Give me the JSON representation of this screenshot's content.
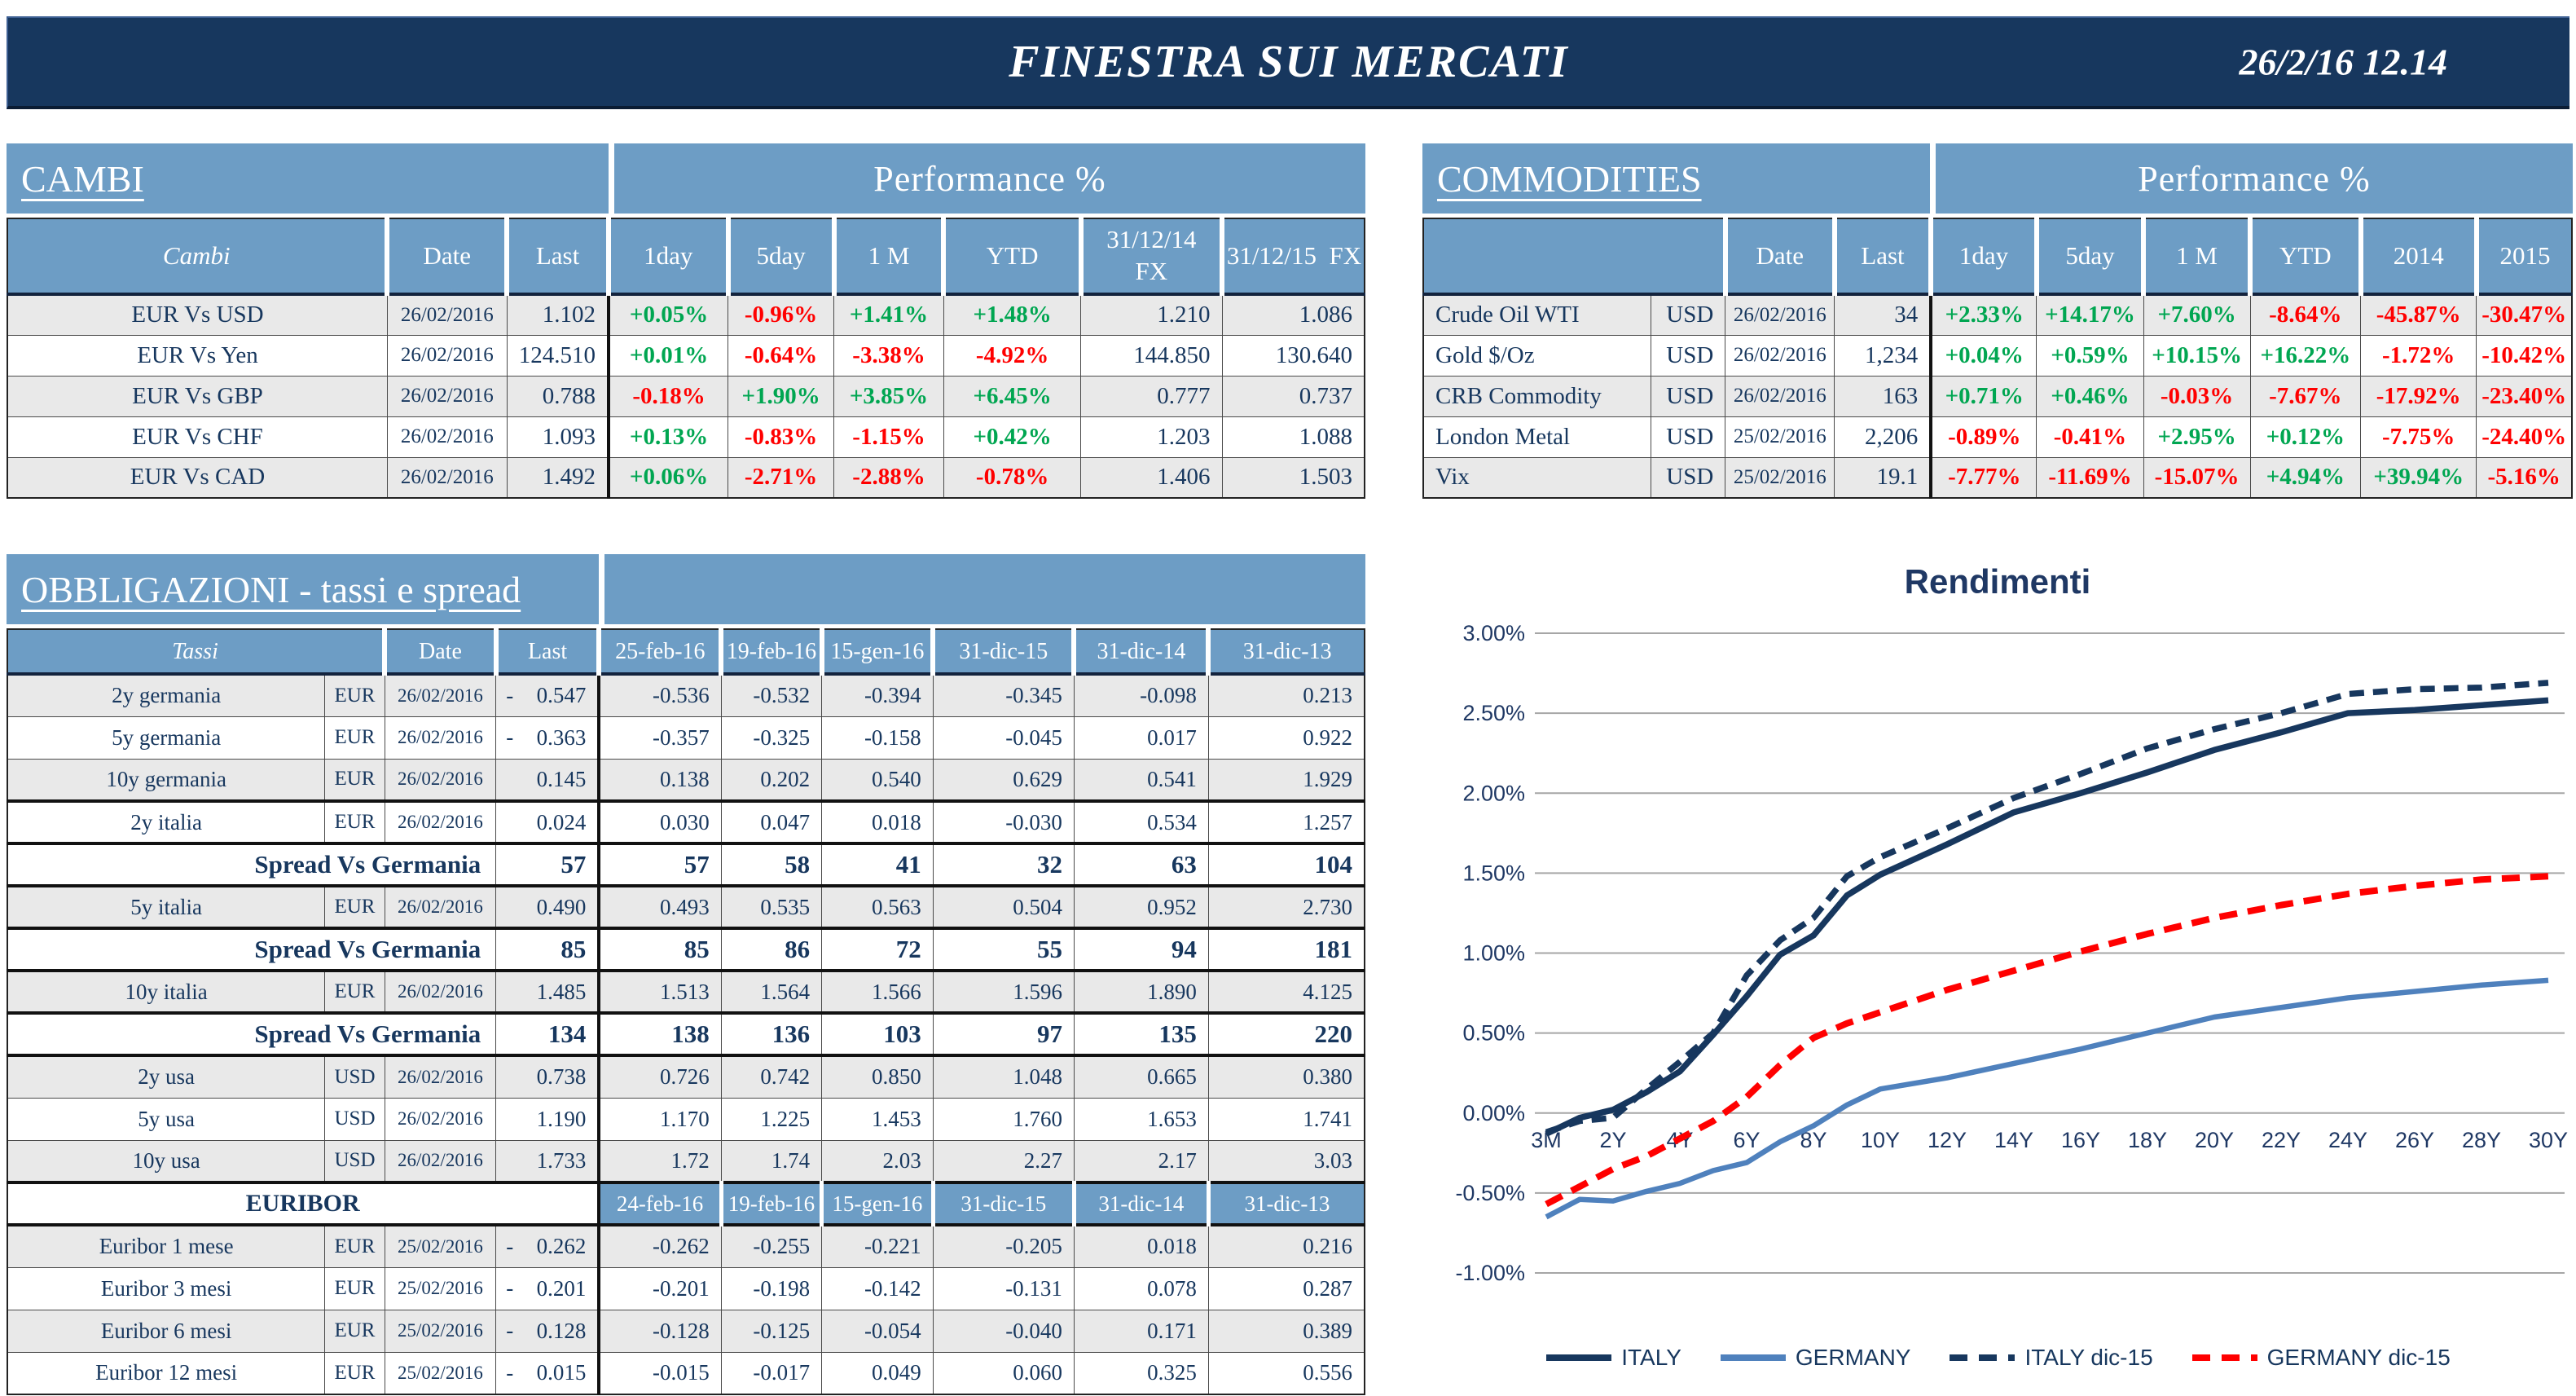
{
  "banner": {
    "title": "FINESTRA SUI MERCATI",
    "datetime": "26/2/16 12.14"
  },
  "colors": {
    "banner_bg": "#17375E",
    "header_blue": "#6D9DC5",
    "navy": "#17375E",
    "green": "#00A651",
    "red": "#FF0000",
    "row_gray": "#E9E9E9",
    "grid_gray": "#A6A6A6",
    "germany_blue": "#4F81BD"
  },
  "cambi": {
    "title": "CAMBI",
    "perf_header": "Performance %",
    "headers": [
      "Cambi",
      "Date",
      "Last",
      "1day",
      "5day",
      "1 M",
      "YTD",
      "31/12/14\nFX",
      "31/12/15  FX"
    ],
    "rows": [
      {
        "name": "EUR Vs USD",
        "date": "26/02/2016",
        "last": "1.102",
        "perf": [
          "+0.05%",
          "-0.96%",
          "+1.41%",
          "+1.48%"
        ],
        "fx14": "1.210",
        "fx15": "1.086"
      },
      {
        "name": "EUR Vs Yen",
        "date": "26/02/2016",
        "last": "124.510",
        "perf": [
          "+0.01%",
          "-0.64%",
          "-3.38%",
          "-4.92%"
        ],
        "fx14": "144.850",
        "fx15": "130.640"
      },
      {
        "name": "EUR Vs GBP",
        "date": "26/02/2016",
        "last": "0.788",
        "perf": [
          "-0.18%",
          "+1.90%",
          "+3.85%",
          "+6.45%"
        ],
        "fx14": "0.777",
        "fx15": "0.737"
      },
      {
        "name": "EUR Vs CHF",
        "date": "26/02/2016",
        "last": "1.093",
        "perf": [
          "+0.13%",
          "-0.83%",
          "-1.15%",
          "+0.42%"
        ],
        "fx14": "1.203",
        "fx15": "1.088"
      },
      {
        "name": "EUR Vs CAD",
        "date": "26/02/2016",
        "last": "1.492",
        "perf": [
          "+0.06%",
          "-2.71%",
          "-2.88%",
          "-0.78%"
        ],
        "fx14": "1.406",
        "fx15": "1.503"
      }
    ]
  },
  "commodities": {
    "title": "COMMODITIES",
    "perf_header": "Performance %",
    "headers": [
      "",
      "Date",
      "Last",
      "1day",
      "5day",
      "1 M",
      "YTD",
      "2014",
      "2015"
    ],
    "rows": [
      {
        "name": "Crude Oil WTI",
        "ccy": "USD",
        "date": "26/02/2016",
        "last": "34",
        "perf": [
          "+2.33%",
          "+14.17%",
          "+7.60%",
          "-8.64%",
          "-45.87%",
          "-30.47%"
        ]
      },
      {
        "name": "Gold $/Oz",
        "ccy": "USD",
        "date": "26/02/2016",
        "last": "1,234",
        "perf": [
          "+0.04%",
          "+0.59%",
          "+10.15%",
          "+16.22%",
          "-1.72%",
          "-10.42%"
        ]
      },
      {
        "name": "CRB Commodity",
        "ccy": "USD",
        "date": "26/02/2016",
        "last": "163",
        "perf": [
          "+0.71%",
          "+0.46%",
          "-0.03%",
          "-7.67%",
          "-17.92%",
          "-23.40%"
        ]
      },
      {
        "name": "London Metal",
        "ccy": "USD",
        "date": "25/02/2016",
        "last": "2,206",
        "perf": [
          "-0.89%",
          "-0.41%",
          "+2.95%",
          "+0.12%",
          "-7.75%",
          "-24.40%"
        ]
      },
      {
        "name": "Vix",
        "ccy": "USD",
        "date": "25/02/2016",
        "last": "19.1",
        "perf": [
          "-7.77%",
          "-11.69%",
          "-15.07%",
          "+4.94%",
          "+39.94%",
          "-5.16%"
        ]
      }
    ]
  },
  "bonds": {
    "title": "OBBLIGAZIONI - tassi e spread",
    "tassi_header": "Tassi",
    "date_header": "Date",
    "last_header": "Last",
    "rate_columns": [
      "25-feb-16",
      "19-feb-16",
      "15-gen-16",
      "31-dic-15",
      "31-dic-14",
      "31-dic-13"
    ],
    "euribor_label": "EURIBOR",
    "euribor_columns": [
      "24-feb-16",
      "19-feb-16",
      "15-gen-16",
      "31-dic-15",
      "31-dic-14",
      "31-dic-13"
    ],
    "spread_label": "Spread Vs Germania",
    "rows": [
      {
        "type": "rate",
        "name": "2y germania",
        "ccy": "EUR",
        "date": "26/02/2016",
        "sign": "-",
        "last": "0.547",
        "vals": [
          "-0.536",
          "-0.532",
          "-0.394",
          "-0.345",
          "-0.098",
          "0.213"
        ],
        "shade": true
      },
      {
        "type": "rate",
        "name": "5y germania",
        "ccy": "EUR",
        "date": "26/02/2016",
        "sign": "-",
        "last": "0.363",
        "vals": [
          "-0.357",
          "-0.325",
          "-0.158",
          "-0.045",
          "0.017",
          "0.922"
        ],
        "shade": false
      },
      {
        "type": "rate",
        "name": "10y germania",
        "ccy": "EUR",
        "date": "26/02/2016",
        "sign": "",
        "last": "0.145",
        "vals": [
          "0.138",
          "0.202",
          "0.540",
          "0.629",
          "0.541",
          "1.929"
        ],
        "shade": true,
        "thick_bottom": true
      },
      {
        "type": "rate",
        "name": "2y italia",
        "ccy": "EUR",
        "date": "26/02/2016",
        "sign": "",
        "last": "0.024",
        "vals": [
          "0.030",
          "0.047",
          "0.018",
          "-0.030",
          "0.534",
          "1.257"
        ],
        "shade": false
      },
      {
        "type": "spread",
        "last": "57",
        "vals": [
          "57",
          "58",
          "41",
          "32",
          "63",
          "104"
        ]
      },
      {
        "type": "rate",
        "name": "5y italia",
        "ccy": "EUR",
        "date": "26/02/2016",
        "sign": "",
        "last": "0.490",
        "vals": [
          "0.493",
          "0.535",
          "0.563",
          "0.504",
          "0.952",
          "2.730"
        ],
        "shade": true
      },
      {
        "type": "spread",
        "last": "85",
        "vals": [
          "85",
          "86",
          "72",
          "55",
          "94",
          "181"
        ]
      },
      {
        "type": "rate",
        "name": "10y italia",
        "ccy": "EUR",
        "date": "26/02/2016",
        "sign": "",
        "last": "1.485",
        "vals": [
          "1.513",
          "1.564",
          "1.566",
          "1.596",
          "1.890",
          "4.125"
        ],
        "shade": true
      },
      {
        "type": "spread",
        "last": "134",
        "vals": [
          "138",
          "136",
          "103",
          "97",
          "135",
          "220"
        ]
      },
      {
        "type": "rate",
        "name": "2y usa",
        "ccy": "USD",
        "date": "26/02/2016",
        "sign": "",
        "last": "0.738",
        "vals": [
          "0.726",
          "0.742",
          "0.850",
          "1.048",
          "0.665",
          "0.380"
        ],
        "shade": true
      },
      {
        "type": "rate",
        "name": "5y usa",
        "ccy": "USD",
        "date": "26/02/2016",
        "sign": "",
        "last": "1.190",
        "vals": [
          "1.170",
          "1.225",
          "1.453",
          "1.760",
          "1.653",
          "1.741"
        ],
        "shade": false
      },
      {
        "type": "rate",
        "name": "10y usa",
        "ccy": "USD",
        "date": "26/02/2016",
        "sign": "",
        "last": "1.733",
        "vals": [
          "1.72",
          "1.74",
          "2.03",
          "2.27",
          "2.17",
          "3.03"
        ],
        "shade": true,
        "thick_bottom": true
      },
      {
        "type": "euribor-header"
      },
      {
        "type": "rate",
        "name": "Euribor 1 mese",
        "ccy": "EUR",
        "date": "25/02/2016",
        "sign": "-",
        "last": "0.262",
        "vals": [
          "-0.262",
          "-0.255",
          "-0.221",
          "-0.205",
          "0.018",
          "0.216"
        ],
        "shade": true
      },
      {
        "type": "rate",
        "name": "Euribor 3 mesi",
        "ccy": "EUR",
        "date": "25/02/2016",
        "sign": "-",
        "last": "0.201",
        "vals": [
          "-0.201",
          "-0.198",
          "-0.142",
          "-0.131",
          "0.078",
          "0.287"
        ],
        "shade": false
      },
      {
        "type": "rate",
        "name": "Euribor 6 mesi",
        "ccy": "EUR",
        "date": "25/02/2016",
        "sign": "-",
        "last": "0.128",
        "vals": [
          "-0.128",
          "-0.125",
          "-0.054",
          "-0.040",
          "0.171",
          "0.389"
        ],
        "shade": true
      },
      {
        "type": "rate",
        "name": "Euribor 12 mesi",
        "ccy": "EUR",
        "date": "25/02/2016",
        "sign": "-",
        "last": "0.015",
        "vals": [
          "-0.015",
          "-0.017",
          "0.049",
          "0.060",
          "0.325",
          "0.556"
        ],
        "shade": false
      }
    ]
  },
  "chart_data": {
    "type": "line",
    "title": "Rendimenti",
    "x_indices": [
      0,
      1,
      2,
      3,
      4,
      5,
      6,
      7,
      8,
      9,
      10,
      12,
      14,
      16,
      18,
      20,
      22,
      24,
      26,
      28,
      30
    ],
    "x_tick_labels": [
      "3M",
      "2Y",
      "4Y",
      "6Y",
      "8Y",
      "10Y",
      "12Y",
      "14Y",
      "16Y",
      "18Y",
      "20Y",
      "22Y",
      "24Y",
      "26Y",
      "28Y",
      "30Y"
    ],
    "x_max_index": 30,
    "ylim": [
      -1.0,
      3.0
    ],
    "ytick_step": 0.5,
    "grid": true,
    "legend_position": "bottom",
    "series": [
      {
        "name": "ITALY",
        "dash": "solid",
        "color": "#17375E",
        "width": 7.5,
        "values": [
          -0.13,
          -0.03,
          0.02,
          0.13,
          0.26,
          0.49,
          0.73,
          0.99,
          1.11,
          1.36,
          1.49,
          1.68,
          1.88,
          2.0,
          2.13,
          2.27,
          2.38,
          2.5,
          2.52,
          2.55,
          2.58
        ]
      },
      {
        "name": "GERMANY",
        "dash": "solid",
        "color": "#4F81BD",
        "width": 6.5,
        "values": [
          -0.65,
          -0.54,
          -0.55,
          -0.49,
          -0.44,
          -0.36,
          -0.31,
          -0.18,
          -0.08,
          0.05,
          0.15,
          0.22,
          0.31,
          0.4,
          0.5,
          0.6,
          0.66,
          0.72,
          0.76,
          0.8,
          0.83
        ]
      },
      {
        "name": "ITALY dic-15",
        "dash": "dashed",
        "color": "#17375E",
        "width": 7.5,
        "values": [
          -0.12,
          -0.05,
          -0.03,
          0.15,
          0.32,
          0.5,
          0.86,
          1.08,
          1.22,
          1.48,
          1.6,
          1.78,
          1.97,
          2.12,
          2.28,
          2.4,
          2.5,
          2.62,
          2.65,
          2.66,
          2.69
        ]
      },
      {
        "name": "GERMANY dic-15",
        "dash": "dashed",
        "color": "#FF0000",
        "width": 8,
        "values": [
          -0.57,
          -0.46,
          -0.35,
          -0.27,
          -0.16,
          -0.05,
          0.1,
          0.3,
          0.47,
          0.56,
          0.63,
          0.77,
          0.89,
          1.01,
          1.12,
          1.22,
          1.3,
          1.37,
          1.42,
          1.46,
          1.48
        ]
      }
    ]
  }
}
